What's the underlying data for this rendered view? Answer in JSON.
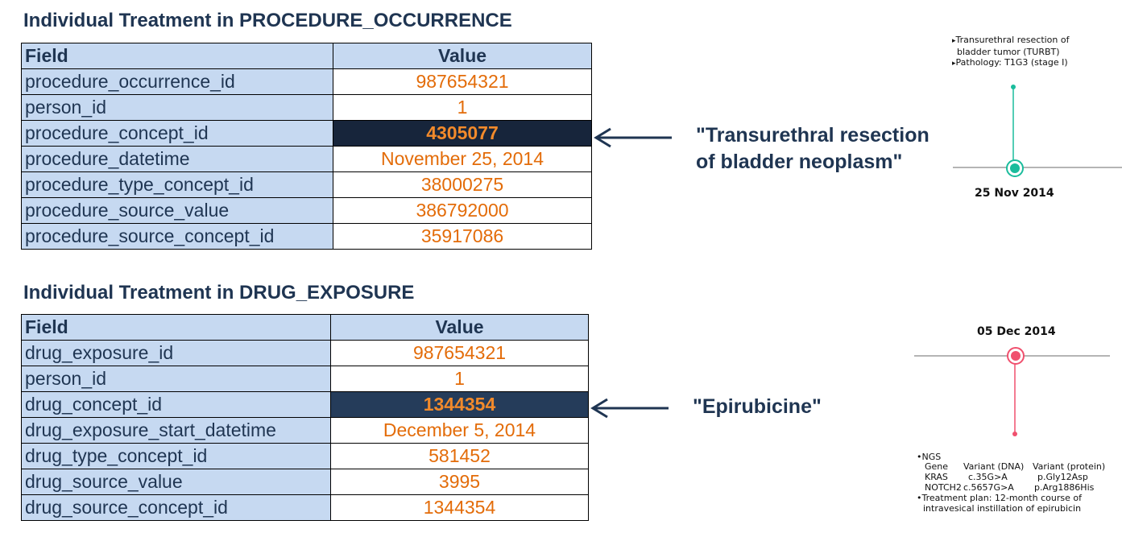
{
  "procedure_section": {
    "title": "Individual Treatment in PROCEDURE_OCCURRENCE",
    "header_field": "Field",
    "header_value": "Value",
    "rows": [
      {
        "field": "procedure_occurrence_id",
        "value": "987654321"
      },
      {
        "field": "person_id",
        "value": "1"
      },
      {
        "field": "procedure_concept_id",
        "value": "4305077"
      },
      {
        "field": "procedure_datetime",
        "value": "November 25, 2014"
      },
      {
        "field": "procedure_type_concept_id",
        "value": "38000275"
      },
      {
        "field": "procedure_source_value",
        "value": "386792000"
      },
      {
        "field": "procedure_source_concept_id",
        "value": "35917086"
      }
    ],
    "concept_label_line1": "\"Transurethral resection",
    "concept_label_line2": "of bladder neoplasm\""
  },
  "drug_section": {
    "title": "Individual Treatment in DRUG_EXPOSURE",
    "header_field": "Field",
    "header_value": "Value",
    "rows": [
      {
        "field": "drug_exposure_id",
        "value": "987654321"
      },
      {
        "field": "person_id",
        "value": "1"
      },
      {
        "field": "drug_concept_id",
        "value": "1344354"
      },
      {
        "field": "drug_exposure_start_datetime",
        "value": "December 5, 2014"
      },
      {
        "field": "drug_type_concept_id",
        "value": "581452"
      },
      {
        "field": "drug_source_value",
        "value": "3995"
      },
      {
        "field": "drug_source_concept_id",
        "value": "1344354"
      }
    ],
    "concept_label": "\"Epirubicine\""
  },
  "timeline_events": {
    "event1": {
      "color": "#1abc9c",
      "date": "25 Nov 2014",
      "notes": [
        "Transurethral resection of",
        "bladder tumor (TURBT)",
        "Pathology: T1G3 (stage I)"
      ]
    },
    "event2": {
      "color": "#f0506e",
      "date": "05 Dec 2014",
      "ngs_title": "NGS",
      "ngs_headers": [
        "Gene",
        "Variant (DNA)",
        "Variant (protein)"
      ],
      "ngs_rows": [
        [
          "KRAS",
          "c.35G>A",
          "p.Gly12Asp"
        ],
        [
          "NOTCH2",
          "c.5657G>A",
          "p.Arg1886His"
        ]
      ],
      "treatment_line1": "Treatment plan: 12-month course of",
      "treatment_line2": "intravesical instillation of epirubicin"
    }
  },
  "colors": {
    "title": "#1f3552",
    "field_bg": "#c6d9f1",
    "value_text": "#e36c09",
    "highlight_bg": "#17253b",
    "highlight_text": "#f28a2b"
  }
}
